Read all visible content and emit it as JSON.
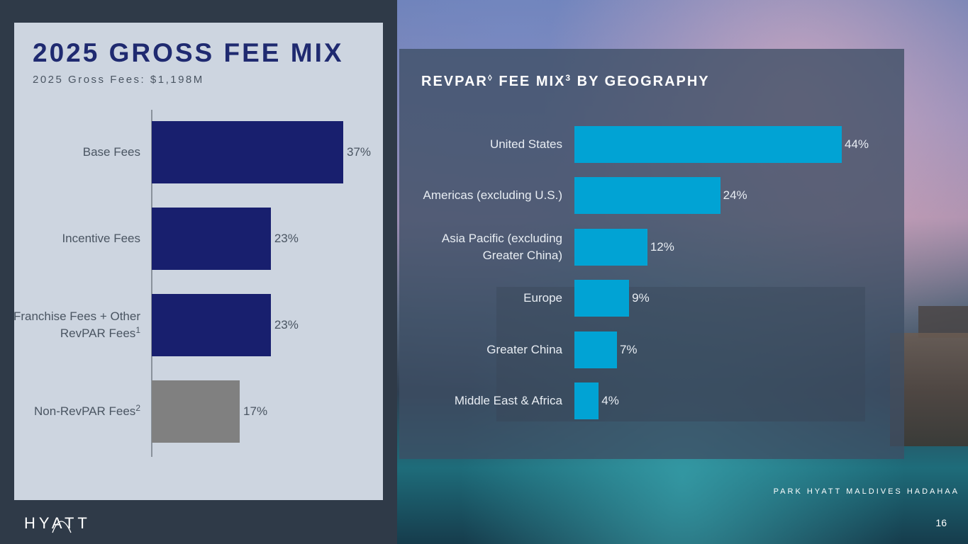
{
  "left": {
    "title": "2025 GROSS FEE MIX",
    "subtitle": "2025 Gross Fees: $1,198M"
  },
  "right": {
    "title_part1": "REVPAR",
    "title_symbol": "◊",
    "title_part2": " FEE MIX",
    "title_sup": "3",
    "title_part3": " BY GEOGRAPHY"
  },
  "footer": {
    "logo_text": "HYATT",
    "caption": "PARK HYATT MALDIVES HADAHAA",
    "page_number": "16"
  },
  "colors": {
    "base": "#181f6e",
    "grey": "#808080",
    "geo": "#01a3d4"
  },
  "chart_data": [
    {
      "type": "bar",
      "orientation": "horizontal",
      "title": "2025 GROSS FEE MIX",
      "subtitle": "2025 Gross Fees: $1,198M",
      "categories": [
        {
          "label": "Base Fees",
          "sup": ""
        },
        {
          "label": "Incentive Fees",
          "sup": ""
        },
        {
          "label": "Franchise Fees + Other RevPAR Fees",
          "sup": "1"
        },
        {
          "label": "Non-RevPAR Fees",
          "sup": "2"
        }
      ],
      "values": [
        37,
        23,
        23,
        17
      ],
      "value_labels": [
        "37%",
        "23%",
        "23%",
        "17%"
      ],
      "bar_colors": [
        "#181f6e",
        "#181f6e",
        "#181f6e",
        "#808080"
      ]
    },
    {
      "type": "bar",
      "orientation": "horizontal",
      "title": "REVPAR◊ FEE MIX3 BY GEOGRAPHY",
      "categories": [
        "United States",
        "Americas (excluding U.S.)",
        "Asia Pacific (excluding Greater China)",
        "Europe",
        "Greater China",
        "Middle East & Africa"
      ],
      "values": [
        44,
        24,
        12,
        9,
        7,
        4
      ],
      "value_labels": [
        "44%",
        "24%",
        "12%",
        "9%",
        "7%",
        "4%"
      ],
      "bar_color": "#01a3d4"
    }
  ]
}
